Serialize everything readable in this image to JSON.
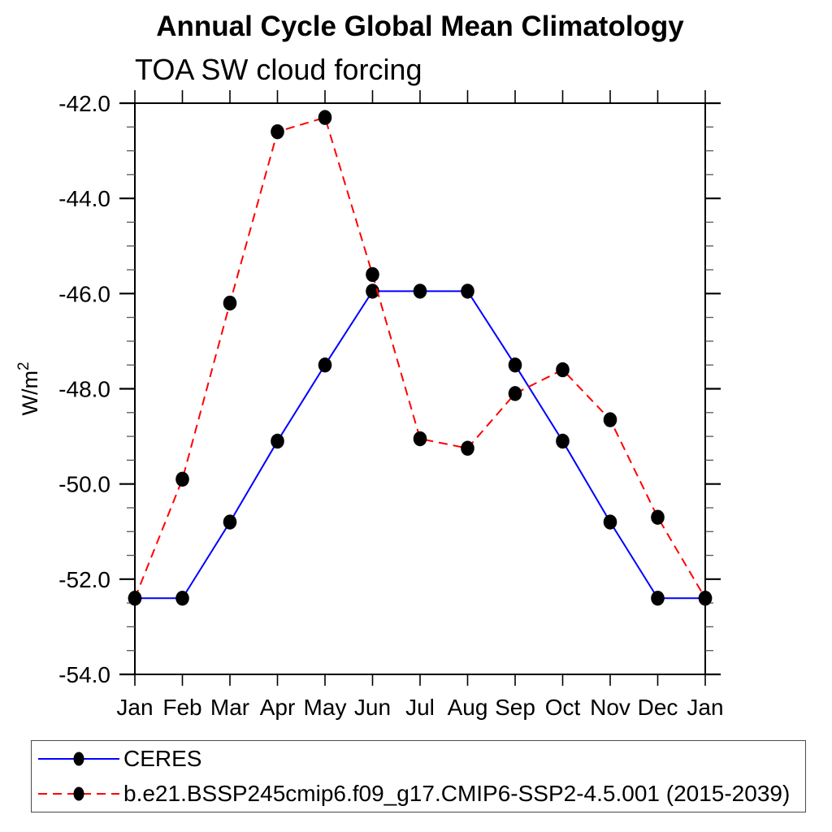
{
  "page": {
    "background": "#ffffff"
  },
  "chart_data": {
    "type": "line",
    "title": "Annual Cycle Global Mean Climatology",
    "subtitle": "TOA SW cloud forcing",
    "ylabel": "W/m²",
    "x_categories": [
      "Jan",
      "Feb",
      "Mar",
      "Apr",
      "May",
      "Jun",
      "Jul",
      "Aug",
      "Sep",
      "Oct",
      "Nov",
      "Dec",
      "Jan"
    ],
    "ylim": [
      -54.0,
      -42.0
    ],
    "ytick_labels": [
      "-42.0",
      "-44.0",
      "-46.0",
      "-48.0",
      "-50.0",
      "-52.0",
      "-54.0"
    ],
    "ytick_major": [
      -42.0,
      -44.0,
      -46.0,
      -48.0,
      -50.0,
      -52.0,
      -54.0
    ],
    "ytick_minor_step": 0.5,
    "grid": false,
    "legend_position": "bottom",
    "marker_color": "#000000",
    "axis_color": "#000000",
    "series": [
      {
        "name": "CERES",
        "color": "#0000ff",
        "line_style": "solid",
        "marker": "circle",
        "values": [
          -52.4,
          -52.4,
          -50.8,
          -49.1,
          -47.5,
          -45.95,
          -45.95,
          -45.95,
          -47.5,
          -49.1,
          -50.8,
          -52.4,
          -52.4
        ]
      },
      {
        "name": "b.e21.BSSP245cmip6.f09_g17.CMIP6-SSP2-4.5.001 (2015-2039)",
        "color": "#ff0000",
        "line_style": "dashed",
        "marker": "circle",
        "values": [
          -52.4,
          -49.9,
          -46.2,
          -42.6,
          -42.3,
          -45.6,
          -49.05,
          -49.25,
          -48.1,
          -47.6,
          -48.65,
          -50.7,
          -52.4
        ]
      }
    ]
  }
}
